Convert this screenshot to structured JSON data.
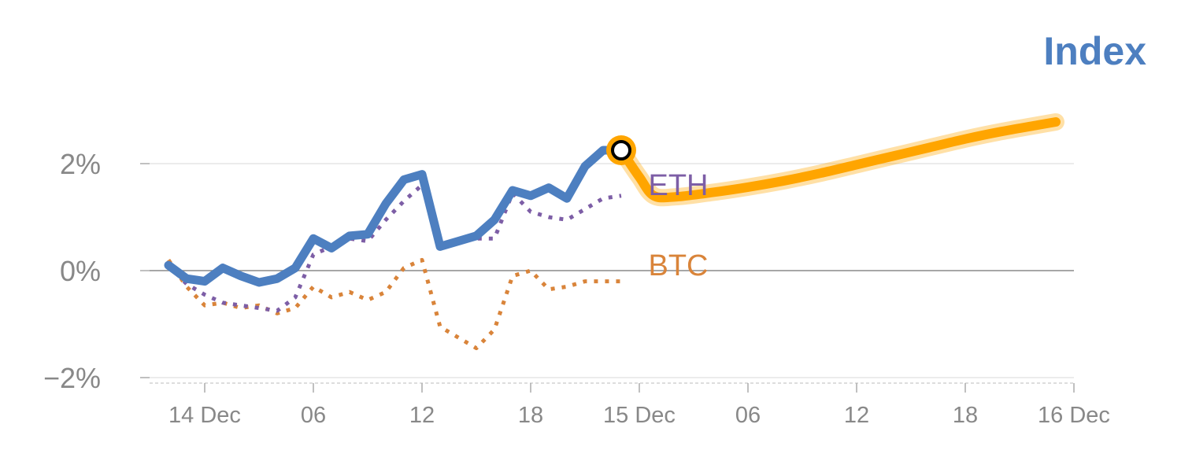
{
  "title": "Index",
  "colors": {
    "index": "#4d7fc0",
    "forecast": "#ffa500",
    "eth": "#7d5ea6",
    "btc": "#d9843a",
    "axis": "#888888",
    "grid": "#e6e6e6"
  },
  "chart_data": {
    "type": "line",
    "title": "Index",
    "xlabel": "",
    "ylabel": "",
    "y_unit": "%",
    "ylim": [
      -2,
      2.8
    ],
    "y_ticks": [
      {
        "value": 2,
        "label": "2%"
      },
      {
        "value": 0,
        "label": "0%"
      },
      {
        "value": -2,
        "label": "−2%"
      }
    ],
    "x_ticks": [
      {
        "t": 0,
        "label": "14 Dec"
      },
      {
        "t": 6,
        "label": "06"
      },
      {
        "t": 12,
        "label": "12"
      },
      {
        "t": 18,
        "label": "18"
      },
      {
        "t": 24,
        "label": "15 Dec"
      },
      {
        "t": 30,
        "label": "06"
      },
      {
        "t": 36,
        "label": "12"
      },
      {
        "t": 42,
        "label": "18"
      },
      {
        "t": 48,
        "label": "16 Dec"
      }
    ],
    "x_unit": "hours from 14 Dec 00:00",
    "grid": true,
    "series": [
      {
        "key": "index",
        "name": "",
        "style": "solid",
        "x": [
          -2,
          -1,
          0,
          1,
          2,
          3,
          4,
          5,
          6,
          7,
          8,
          9,
          10,
          11,
          12,
          13,
          14,
          15,
          16,
          17,
          18,
          19,
          20,
          21,
          22,
          23
        ],
        "y": [
          0.1,
          -0.15,
          -0.2,
          0.05,
          -0.1,
          -0.22,
          -0.15,
          0.05,
          0.6,
          0.42,
          0.65,
          0.68,
          1.25,
          1.7,
          1.8,
          0.45,
          0.55,
          0.65,
          0.95,
          1.5,
          1.4,
          1.55,
          1.35,
          1.95,
          2.25,
          2.25
        ]
      },
      {
        "key": "forecast",
        "name": "",
        "style": "band",
        "x": [
          23,
          24,
          24.8,
          26,
          28,
          30,
          32,
          34,
          36,
          38,
          40,
          42,
          44,
          46,
          47
        ],
        "y": [
          2.25,
          1.75,
          1.4,
          1.38,
          1.46,
          1.56,
          1.68,
          1.82,
          1.98,
          2.14,
          2.3,
          2.46,
          2.6,
          2.72,
          2.78
        ]
      },
      {
        "key": "eth",
        "name": "ETH",
        "style": "dotted",
        "x": [
          -2,
          -1,
          0,
          1,
          2,
          3,
          4,
          5,
          6,
          7,
          8,
          9,
          10,
          11,
          12,
          13,
          14,
          15,
          16,
          17,
          18,
          19,
          20,
          21,
          22,
          23
        ],
        "y": [
          0.1,
          -0.25,
          -0.45,
          -0.6,
          -0.65,
          -0.7,
          -0.75,
          -0.5,
          0.3,
          0.45,
          0.6,
          0.55,
          0.95,
          1.3,
          1.6,
          0.45,
          0.55,
          0.6,
          0.6,
          1.45,
          1.1,
          1.0,
          0.95,
          1.15,
          1.35,
          1.4
        ]
      },
      {
        "key": "btc",
        "name": "BTC",
        "style": "dotted",
        "x": [
          -2,
          -1,
          0,
          1,
          2,
          3,
          4,
          5,
          6,
          7,
          8,
          9,
          10,
          11,
          12,
          13,
          14,
          15,
          16,
          17,
          18,
          19,
          20,
          21,
          22,
          23
        ],
        "y": [
          0.2,
          -0.3,
          -0.65,
          -0.6,
          -0.7,
          -0.65,
          -0.8,
          -0.7,
          -0.3,
          -0.5,
          -0.4,
          -0.55,
          -0.4,
          0.05,
          0.2,
          -1.05,
          -1.25,
          -1.45,
          -1.1,
          -0.1,
          0.0,
          -0.35,
          -0.3,
          -0.2,
          -0.2,
          -0.2
        ]
      }
    ],
    "marker": {
      "t": 23,
      "value": 2.25
    },
    "labels": [
      {
        "series": "eth",
        "text": "ETH",
        "t": 24.5,
        "value": 1.6
      },
      {
        "series": "btc",
        "text": "BTC",
        "t": 24.5,
        "value": 0.1
      }
    ]
  }
}
